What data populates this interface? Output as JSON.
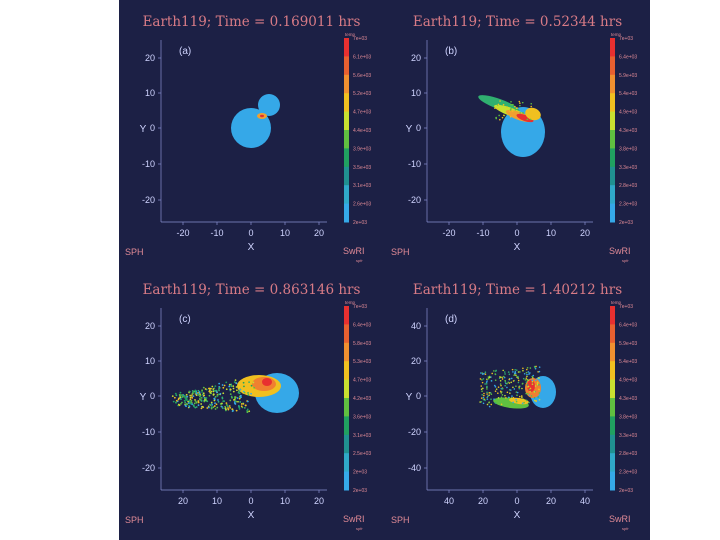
{
  "panels": [
    {
      "title": "Earth119; Time = 0.169011 hrs",
      "label": "(a)",
      "x_ticks": [
        "-20",
        "-10",
        "0",
        "10",
        "20"
      ],
      "y_ticks": [
        "20",
        "10",
        "0",
        "-10",
        "-20"
      ],
      "xlabel": "X",
      "ylabel": "Y",
      "colorbar_title": "temp",
      "colorbar_labels": [
        "7e+03",
        "6.1e+03",
        "5.6e+03",
        "5.2e+03",
        "4.7e+03",
        "4.4e+03",
        "3.9e+03",
        "3.5e+03",
        "3.1e+03",
        "2.6e+03",
        "2e+03"
      ],
      "sph_label": "SPH",
      "swri_label": "SwRI",
      "swri_sub": "spfr"
    },
    {
      "title": "Earth119; Time = 0.52344 hrs",
      "label": "(b)",
      "x_ticks": [
        "-20",
        "-10",
        "0",
        "10",
        "20"
      ],
      "y_ticks": [
        "20",
        "10",
        "0",
        "-10",
        "-20"
      ],
      "xlabel": "X",
      "ylabel": "Y",
      "colorbar_title": "temp",
      "colorbar_labels": [
        "7e+03",
        "6.4e+03",
        "5.9e+03",
        "5.4e+03",
        "4.9e+03",
        "4.3e+03",
        "3.8e+03",
        "3.3e+03",
        "2.8e+03",
        "2.3e+03",
        "2e+03"
      ],
      "sph_label": "SPH",
      "swri_label": "SwRI",
      "swri_sub": "spfr"
    },
    {
      "title": "Earth119; Time = 0.863146 hrs",
      "label": "(c)",
      "x_ticks": [
        "20",
        "10",
        "0",
        "10",
        "20"
      ],
      "y_ticks": [
        "20",
        "10",
        "0",
        "-10",
        "-20"
      ],
      "xlabel": "X",
      "ylabel": "Y",
      "colorbar_title": "temp",
      "colorbar_labels": [
        "7e+03",
        "6.4e+03",
        "5.8e+03",
        "5.3e+03",
        "4.7e+03",
        "4.2e+03",
        "3.6e+03",
        "3.1e+03",
        "2.5e+03",
        "2e+03",
        "2e+03"
      ],
      "sph_label": "SPH",
      "swri_label": "SwRI",
      "swri_sub": "spfr"
    },
    {
      "title": "Earth119; Time = 1.40212 hrs",
      "label": "(d)",
      "x_ticks": [
        "40",
        "20",
        "0",
        "20",
        "40"
      ],
      "y_ticks": [
        "40",
        "20",
        "0",
        "-20",
        "-40"
      ],
      "xlabel": "X",
      "ylabel": "Y",
      "colorbar_title": "temp",
      "colorbar_labels": [
        "7e+03",
        "6.4e+03",
        "5.9e+03",
        "5.4e+03",
        "4.9e+03",
        "4.3e+03",
        "3.8e+03",
        "3.3e+03",
        "2.8e+03",
        "2.3e+03",
        "2e+03"
      ],
      "sph_label": "SPH",
      "swri_label": "SwRI",
      "swri_sub": "spfr"
    }
  ],
  "colors": {
    "background": "#1c2045",
    "body": "#35a8e8",
    "colorbar": [
      "#e83030",
      "#e86030",
      "#f09030",
      "#f0c020",
      "#c8e030",
      "#60c040",
      "#20a060",
      "#209090",
      "#30a8c8",
      "#35a8e8"
    ]
  }
}
